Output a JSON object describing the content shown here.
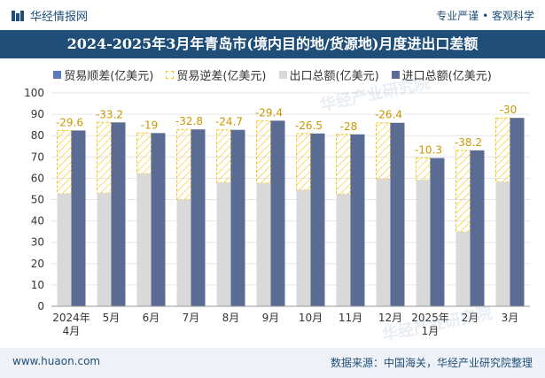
{
  "header": {
    "brand": "华经情报网",
    "tags": "专业严谨 • 客观科学",
    "title": "2024-2025年3月年青岛市(境内目的地/货源地)月度进出口差额"
  },
  "legend": {
    "shun": "贸易顺差(亿美元)",
    "ni": "贸易逆差(亿美元)",
    "exp": "出口总额(亿美元)",
    "imp": "进口总额(亿美元)"
  },
  "watermarks": [
    "华经产业研究院",
    "华经产业研究院"
  ],
  "footer": {
    "site": "www.huaon.com",
    "source": "数据来源：中国海关，华经产业研究院整理"
  },
  "colors": {
    "export": "#d9d9d9",
    "import": "#5a6c93",
    "deficit_stroke": "#f5c518",
    "grid": "#e6e6e6"
  },
  "chart_data": {
    "type": "bar",
    "title": "2024-2025年3月年青岛市(境内目的地/货源地)月度进出口差额",
    "categories": [
      "2024年\n4月",
      "5月",
      "6月",
      "7月",
      "8月",
      "9月",
      "10月",
      "11月",
      "12月",
      "2025年\n1月",
      "2月",
      "3月"
    ],
    "ylim": [
      0,
      100
    ],
    "yticks": [
      0,
      10,
      20,
      30,
      40,
      50,
      60,
      70,
      80,
      90,
      100
    ],
    "series": [
      {
        "name": "出口总额(亿美元)",
        "values": [
          52.8,
          53.0,
          62.2,
          50.1,
          58.0,
          57.6,
          54.5,
          52.6,
          59.6,
          59.2,
          34.9,
          58.3
        ]
      },
      {
        "name": "进口总额(亿美元)",
        "values": [
          82.4,
          86.2,
          81.2,
          82.9,
          82.7,
          87.0,
          81.0,
          80.6,
          86.0,
          69.5,
          73.1,
          88.3
        ]
      },
      {
        "name": "贸易逆差(亿美元)",
        "values": [
          -29.6,
          -33.2,
          -19,
          -32.8,
          -24.7,
          -29.4,
          -26.5,
          -28,
          -26.4,
          -10.3,
          -38.2,
          -30
        ]
      }
    ],
    "deficit_labels": [
      "-29.6",
      "-33.2",
      "-19",
      "-32.8",
      "-24.7",
      "-29.4",
      "-26.5",
      "-28",
      "-26.4",
      "-10.3",
      "-38.2",
      "-30"
    ]
  }
}
